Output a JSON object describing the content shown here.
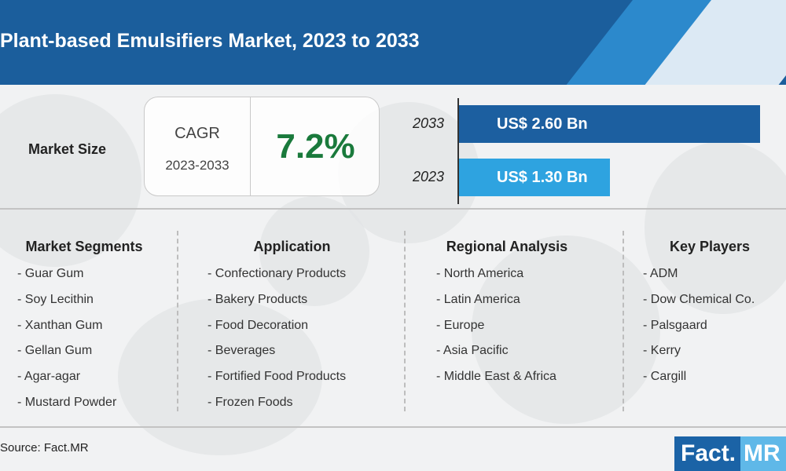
{
  "header": {
    "title": "Plant-based Emulsifiers Market, 2023 to 2033"
  },
  "market_size": {
    "label": "Market Size",
    "cagr_label": "CAGR",
    "cagr_period": "2023-2033",
    "cagr_value": "7.2%"
  },
  "chart_data": {
    "type": "bar",
    "orientation": "horizontal",
    "categories": [
      "2033",
      "2023"
    ],
    "values": [
      2.6,
      1.3
    ],
    "data_labels": [
      "US$ 2.60 Bn",
      "US$ 1.30 Bn"
    ],
    "colors": [
      "#1c5fa0",
      "#2ea3e0"
    ],
    "xlim": [
      0,
      2.6
    ]
  },
  "columns": [
    {
      "heading": "Market Segments",
      "items": [
        "Guar Gum",
        "Soy Lecithin",
        "Xanthan Gum",
        "Gellan Gum",
        "Agar-agar",
        "Mustard Powder"
      ]
    },
    {
      "heading": "Application",
      "items": [
        "Confectionary Products",
        "Bakery Products",
        "Food Decoration",
        "Beverages",
        "Fortified Food Products",
        "Frozen Foods"
      ]
    },
    {
      "heading": "Regional Analysis",
      "items": [
        "North America",
        "Latin America",
        "Europe",
        "Asia Pacific",
        "Middle East & Africa"
      ]
    },
    {
      "heading": "Key Players",
      "items": [
        "ADM",
        "Dow Chemical Co.",
        "Palsgaard",
        "Kerry",
        "Cargill"
      ]
    }
  ],
  "footer": {
    "source": "Source: Fact.MR",
    "logo_left": "Fact.",
    "logo_right": "MR"
  }
}
